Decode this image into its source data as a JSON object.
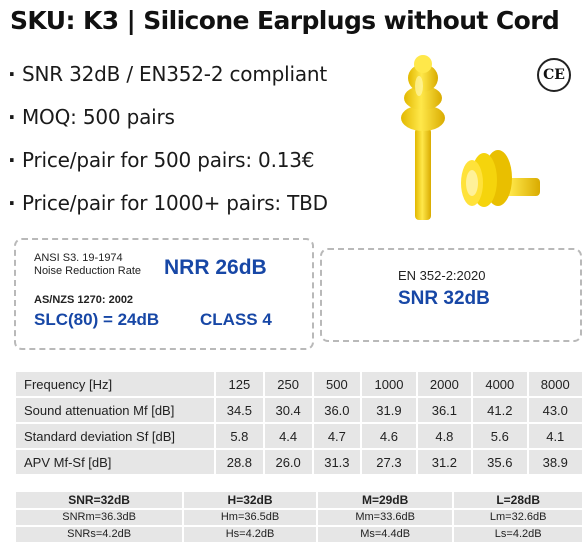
{
  "title": "SKU: K3 | Silicone Earplugs without Cord",
  "bullets": [
    "SNR 32dB / EN352-2 compliant",
    "MOQ: 500 pairs",
    "Price/pair for 500 pairs: 0.13€",
    "Price/pair for 1000+ pairs: TBD"
  ],
  "bullet_marker": "·",
  "ce_mark": "CE",
  "colors": {
    "earplug": "#f5d40c",
    "earplug_shade": "#e2b800",
    "rating_blue": "#1747a6",
    "table_bg": "#e6e6e6"
  },
  "ratings": {
    "ansi_line1": "ANSI S3. 19-1974",
    "ansi_line2": "Noise Reduction Rate",
    "nrr": "NRR 26dB",
    "asnzs": "AS/NZS 1270: 2002",
    "slc": "SLC(80) = 24dB",
    "class": "CLASS 4",
    "en_standard": "EN 352-2:2020",
    "snr": "SNR 32dB"
  },
  "frequency_table": {
    "rows": [
      {
        "label": "Frequency [Hz]",
        "values": [
          "125",
          "250",
          "500",
          "1000",
          "2000",
          "4000",
          "8000"
        ]
      },
      {
        "label": "Sound attenuation Mf [dB]",
        "values": [
          "34.5",
          "30.4",
          "36.0",
          "31.9",
          "36.1",
          "41.2",
          "43.0"
        ]
      },
      {
        "label": "Standard deviation Sf [dB]",
        "values": [
          "5.8",
          "4.4",
          "4.7",
          "4.6",
          "4.8",
          "5.6",
          "4.1"
        ]
      },
      {
        "label": "APV  Mf-Sf [dB]",
        "values": [
          "28.8",
          "26.0",
          "31.3",
          "27.3",
          "31.2",
          "35.6",
          "38.9"
        ]
      }
    ]
  },
  "snr_table": {
    "headers": [
      "SNR=32dB",
      "H=32dB",
      "M=29dB",
      "L=28dB"
    ],
    "row1": [
      "SNRm=36.3dB",
      "Hm=36.5dB",
      "Mm=33.6dB",
      "Lm=32.6dB"
    ],
    "row2": [
      "SNRs=4.2dB",
      "Hs=4.2dB",
      "Ms=4.4dB",
      "Ls=4.2dB"
    ]
  }
}
